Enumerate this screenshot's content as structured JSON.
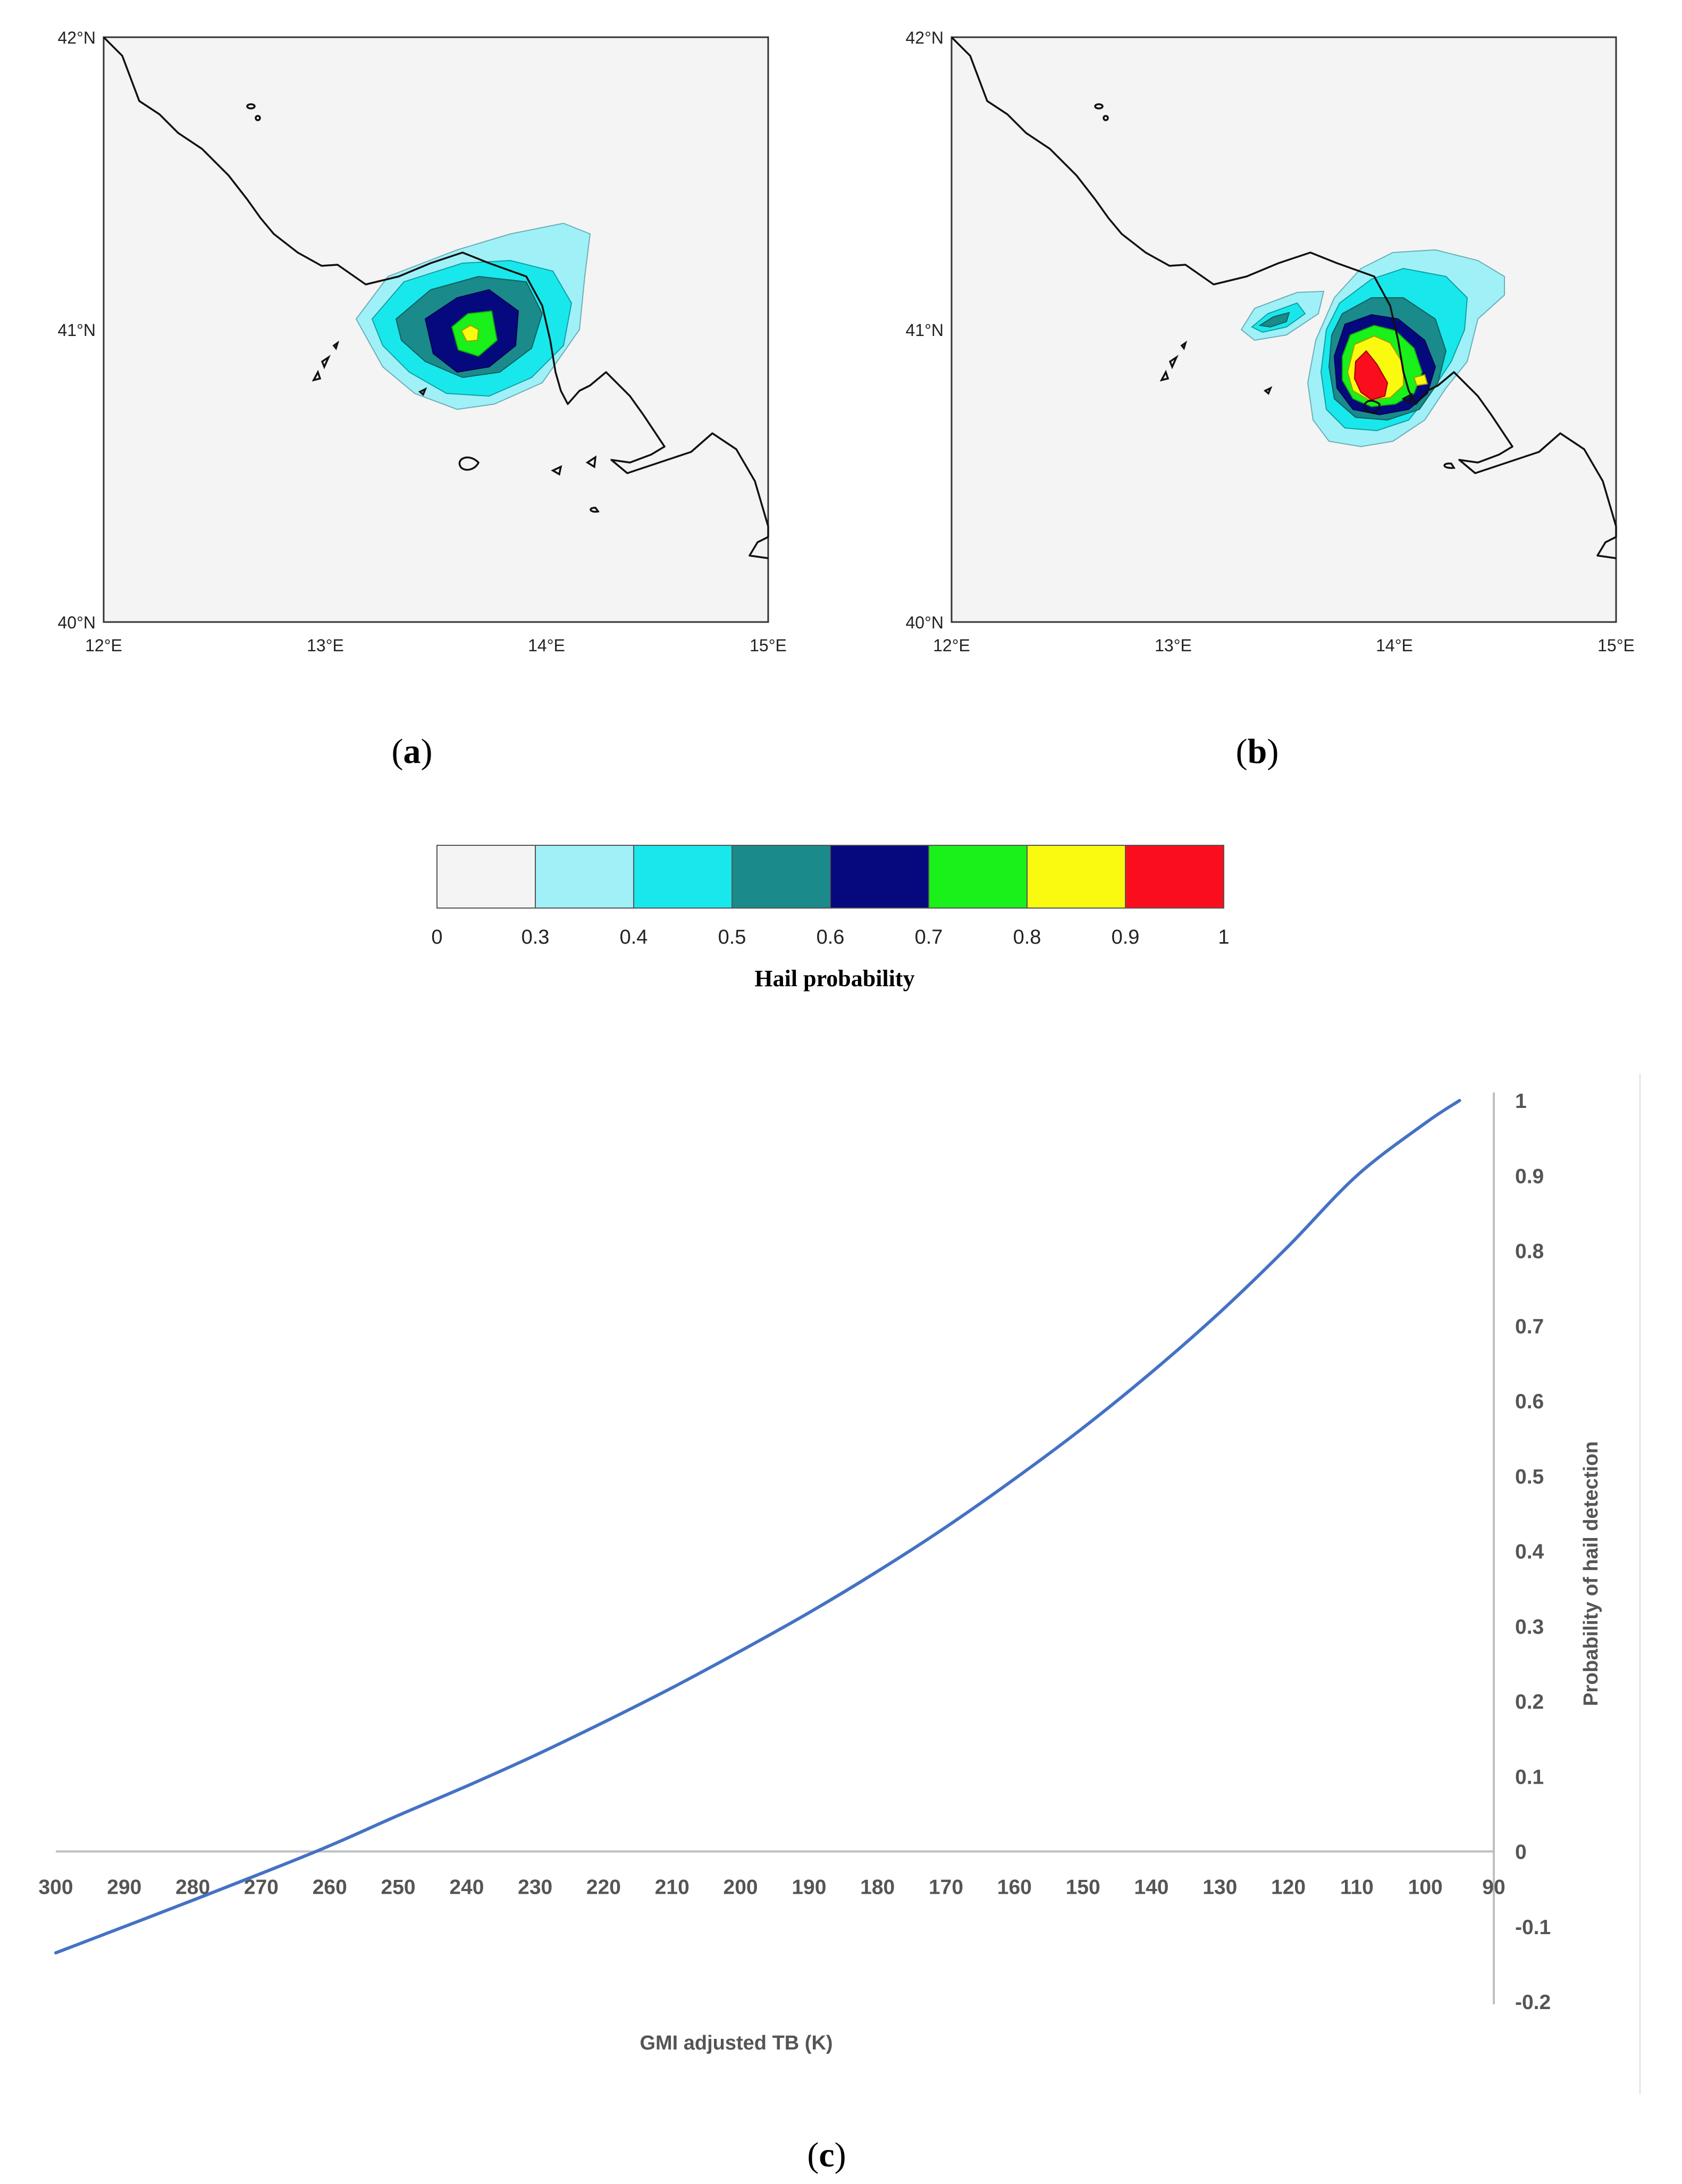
{
  "panels": [
    {
      "label_open": "(",
      "label_letter": "a",
      "label_close": ")",
      "lat_ticks": [
        "42°N",
        "41°N",
        "40°N"
      ],
      "lon_ticks": [
        "12°E",
        "13°E",
        "14°E",
        "15°E"
      ]
    },
    {
      "label_open": "(",
      "label_letter": "b",
      "label_close": ")",
      "lat_ticks": [
        "42°N",
        "41°N",
        "40°N"
      ],
      "lon_ticks": [
        "12°E",
        "13°E",
        "14°E",
        "15°E"
      ]
    }
  ],
  "colorbar": {
    "title": "Hail probability",
    "ticks": [
      "0",
      "0.3",
      "0.4",
      "0.5",
      "0.6",
      "0.7",
      "0.8",
      "0.9",
      "1"
    ],
    "colors": [
      "#f4f4f4",
      "#a0f0f8",
      "#18e8ec",
      "#1a8a8a",
      "#06087e",
      "#1af01a",
      "#fafa10",
      "#fa0e1e"
    ]
  },
  "chart_data": {
    "type": "line",
    "label_open": "(",
    "label_letter": "c",
    "label_close": ")",
    "xlabel": "GMI adjusted TB (K)",
    "ylabel": "Probability of hail detection",
    "x_reversed": true,
    "xlim": [
      300,
      90
    ],
    "ylim": [
      -0.2,
      1
    ],
    "x_ticks": [
      "300",
      "290",
      "280",
      "270",
      "260",
      "250",
      "240",
      "230",
      "220",
      "210",
      "200",
      "190",
      "180",
      "170",
      "160",
      "150",
      "140",
      "130",
      "120",
      "110",
      "100",
      "90"
    ],
    "y_ticks": [
      "1",
      "0.9",
      "0.8",
      "0.7",
      "0.6",
      "0.5",
      "0.4",
      "0.3",
      "0.2",
      "0.1",
      "0",
      "-0.1",
      "-0.2"
    ],
    "series": [
      {
        "name": "Probability of hail detection",
        "color": "#4472c4",
        "x": [
          300,
          280,
          262,
          250,
          240,
          230,
          220,
          210,
          200,
          190,
          180,
          170,
          160,
          150,
          140,
          130,
          120,
          110,
          100,
          95
        ],
        "y": [
          -0.135,
          -0.065,
          0.0,
          0.048,
          0.087,
          0.128,
          0.172,
          0.218,
          0.267,
          0.318,
          0.373,
          0.432,
          0.496,
          0.564,
          0.638,
          0.718,
          0.806,
          0.9,
          0.97,
          1.0
        ]
      }
    ]
  }
}
